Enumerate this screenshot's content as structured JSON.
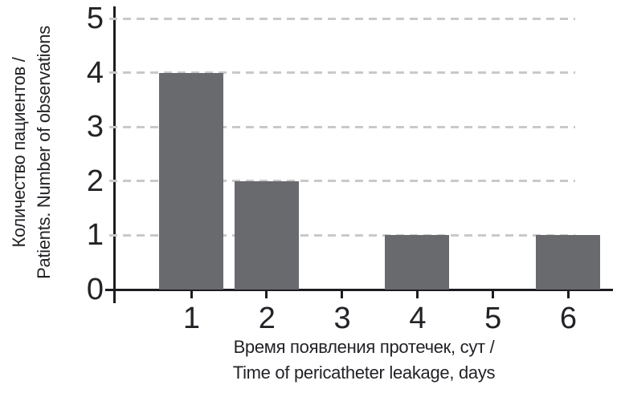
{
  "chart_data": {
    "type": "bar",
    "categories": [
      "1",
      "2",
      "3",
      "4",
      "5",
      "6"
    ],
    "values": [
      4,
      2,
      0,
      1,
      0,
      1
    ],
    "title": "",
    "xlabel_line1": "Время появления протечек, сут /",
    "xlabel_line2": "Time of pericatheter leakage, days",
    "ylabel_line1": "Количество пациентов /",
    "ylabel_line2": "Patients. Number of observations",
    "yticks": [
      "0",
      "1",
      "2",
      "3",
      "4",
      "5"
    ],
    "ylim": [
      0,
      5
    ],
    "grid": "horizontal-dashed",
    "legend_position": "none",
    "colors": {
      "bar": "#696a6d",
      "gridline": "#c9c9c9",
      "axis": "#1d1c20",
      "text": "#232227",
      "background": "#ffffff"
    }
  }
}
